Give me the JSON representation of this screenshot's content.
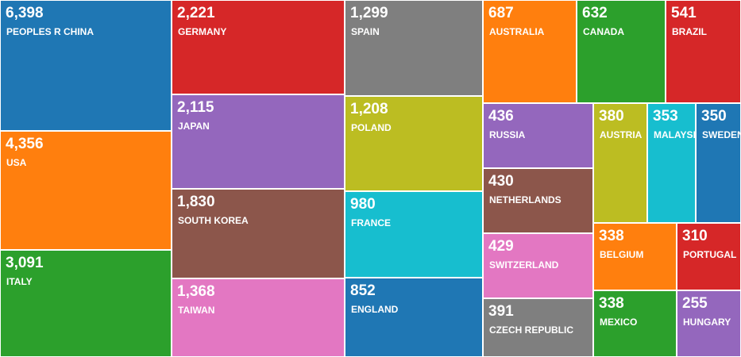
{
  "chart_data": {
    "type": "treemap",
    "categories": [
      "PEOPLES R CHINA",
      "USA",
      "ITALY",
      "GERMANY",
      "JAPAN",
      "SOUTH KOREA",
      "TAIWAN",
      "SPAIN",
      "POLAND",
      "FRANCE",
      "ENGLAND",
      "AUSTRALIA",
      "CANADA",
      "BRAZIL",
      "RUSSIA",
      "NETHERLANDS",
      "SWITZERLAND",
      "CZECH REPUBLIC",
      "AUSTRIA",
      "MALAYSIA",
      "SWEDEN",
      "BELGIUM",
      "MEXICO",
      "PORTUGAL",
      "HUNGARY"
    ],
    "values": [
      6398,
      4356,
      3091,
      2221,
      2115,
      1830,
      1368,
      1299,
      1208,
      980,
      852,
      687,
      632,
      541,
      436,
      430,
      429,
      391,
      380,
      353,
      350,
      338,
      338,
      310,
      255
    ],
    "value_labels": [
      "6,398",
      "4,356",
      "3,091",
      "2,221",
      "2,115",
      "1,830",
      "1,368",
      "1,299",
      "1,208",
      "980",
      "852",
      "687",
      "632",
      "541",
      "436",
      "430",
      "429",
      "391",
      "380",
      "353",
      "350",
      "338",
      "338",
      "310",
      "255"
    ],
    "colors": [
      "#1f77b4",
      "#ff7f0e",
      "#2ca02c",
      "#d62728",
      "#9467bd",
      "#8c564b",
      "#e377c2",
      "#7f7f7f",
      "#bcbd22",
      "#17becf",
      "#1f77b4",
      "#ff7f0e",
      "#2ca02c",
      "#d62728",
      "#9467bd",
      "#8c564b",
      "#e377c2",
      "#7f7f7f",
      "#bcbd22",
      "#17becf",
      "#1f77b4",
      "#ff7f0e",
      "#2ca02c",
      "#d62728",
      "#9467bd"
    ]
  }
}
